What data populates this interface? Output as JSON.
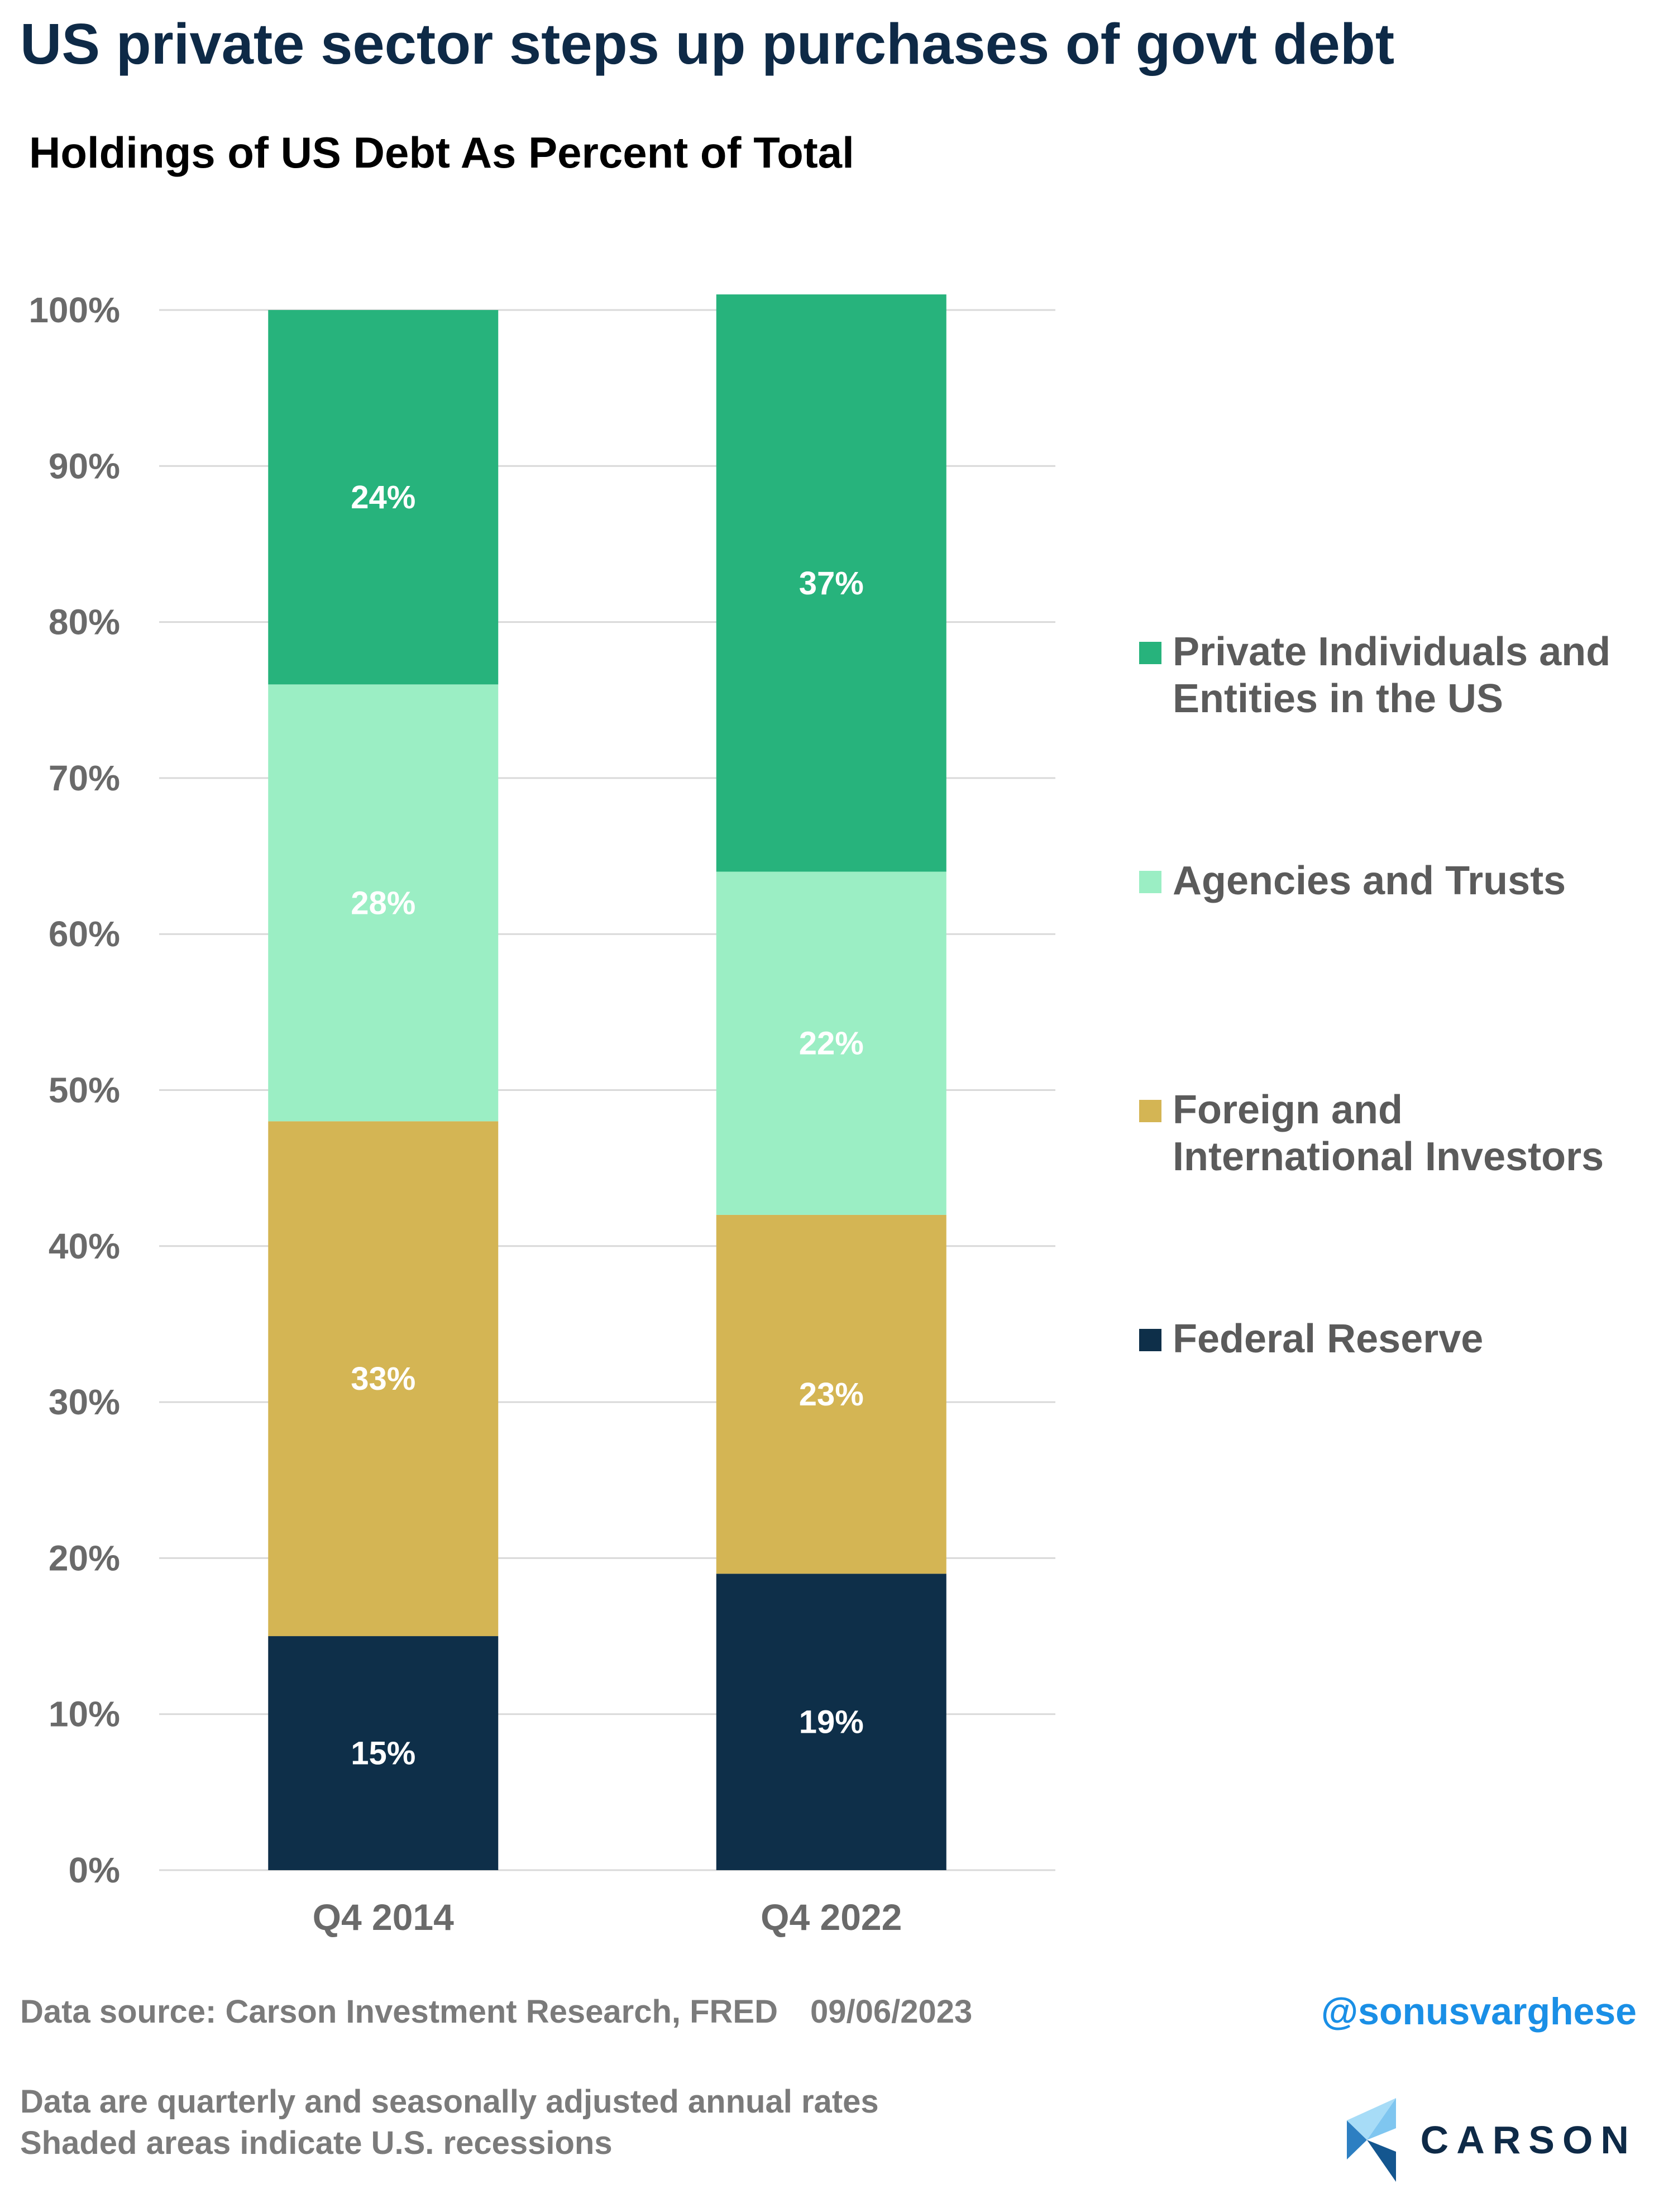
{
  "headline": "US private sector steps up purchases of govt debt",
  "footer": {
    "source": "Data source: Carson Investment Research, FRED",
    "date": "09/06/2023",
    "handle": "@sonusvarghese",
    "note_1": "Data are quarterly and seasonally adjusted annual rates",
    "note_2": "Shaded areas indicate U.S. recessions",
    "logo_text": "CARSON"
  },
  "colors": {
    "federal_reserve": "#0e2f49",
    "foreign": "#d4b554",
    "agencies": "#9beec4",
    "private": "#27b37c",
    "gridline": "#d9d9d9",
    "axis_text": "#6a6a6a",
    "headline": "#0e2a47",
    "handle": "#1a8fe6"
  },
  "chart_data": {
    "type": "bar",
    "stacked": true,
    "title": "Holdings of US Debt As Percent of Total",
    "xlabel": "",
    "ylabel": "",
    "categories": [
      "Q4 2014",
      "Q4 2022"
    ],
    "ylim": [
      0,
      100
    ],
    "yticks": [
      "0%",
      "10%",
      "20%",
      "30%",
      "40%",
      "50%",
      "60%",
      "70%",
      "80%",
      "90%",
      "100%"
    ],
    "grid": true,
    "legend_position": "right",
    "series": [
      {
        "name": "Federal Reserve",
        "values": [
          15,
          19
        ],
        "labels": [
          "15%",
          "19%"
        ],
        "color": "#0e2f49"
      },
      {
        "name": "Foreign and International Investors",
        "values": [
          33,
          23
        ],
        "labels": [
          "33%",
          "23%"
        ],
        "color": "#d4b554"
      },
      {
        "name": "Agencies and Trusts",
        "values": [
          28,
          22
        ],
        "labels": [
          "28%",
          "22%"
        ],
        "color": "#9beec4"
      },
      {
        "name": "Private Individuals and Entities in the US",
        "values": [
          24,
          37
        ],
        "labels": [
          "24%",
          "37%"
        ],
        "color": "#27b37c"
      }
    ]
  }
}
